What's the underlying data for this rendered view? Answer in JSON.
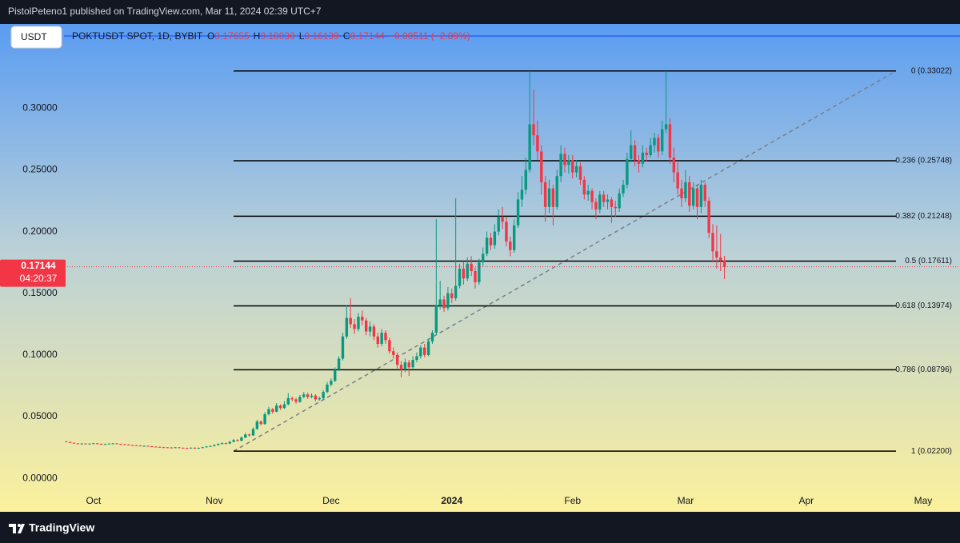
{
  "header": "PistolPeteno1 published on TradingView.com, Mar 11, 2024 02:39 UTC+7",
  "footer": "TradingView",
  "chart_data": {
    "type": "candlestick",
    "currency_button": "USDT",
    "symbol": "POKTUSDT SPOT, 1D, BYBIT",
    "legend_ohlc": [
      {
        "key": "O",
        "value": "0.17655"
      },
      {
        "key": "H",
        "value": "0.18030"
      },
      {
        "key": "L",
        "value": "0.16139"
      },
      {
        "key": "C",
        "value": "0.17144"
      }
    ],
    "change": "−0.00511 (−2.89%)",
    "last_price": 0.17144,
    "countdown": "04:20:37",
    "up_color": "#089981",
    "down_color": "#f23645",
    "xlim": [
      -24,
      220
    ],
    "xticks": [
      {
        "value": 0,
        "label": "Oct"
      },
      {
        "value": 31,
        "label": "Nov"
      },
      {
        "value": 61,
        "label": "Dec"
      },
      {
        "value": 92,
        "label": "2024"
      },
      {
        "value": 123,
        "label": "Feb"
      },
      {
        "value": 152,
        "label": "Mar"
      },
      {
        "value": 183,
        "label": "Apr"
      },
      {
        "value": 213,
        "label": "May"
      }
    ],
    "ylim": [
      -0.009,
      0.367
    ],
    "yticks": [
      {
        "value": 0,
        "label": "0.00000"
      },
      {
        "value": 0.05,
        "label": "0.05000"
      },
      {
        "value": 0.1,
        "label": "0.10000"
      },
      {
        "value": 0.15,
        "label": "0.15000"
      },
      {
        "value": 0.2,
        "label": "0.20000"
      },
      {
        "value": 0.25,
        "label": "0.25000"
      },
      {
        "value": 0.3,
        "label": "0.30000"
      }
    ],
    "fib_levels": [
      {
        "label": "0 (0.33022)",
        "value": 0.33022
      },
      {
        "label": "0.236 (0.25748)",
        "value": 0.25748
      },
      {
        "label": "0.382 (0.21248)",
        "value": 0.21248
      },
      {
        "label": "0.5 (0.17611)",
        "value": 0.17611
      },
      {
        "label": "0.618 (0.13974)",
        "value": 0.13974
      },
      {
        "label": "0.786 (0.08796)",
        "value": 0.08796
      },
      {
        "label": "1 (0.02200)",
        "value": 0.022
      }
    ],
    "x": [
      -7,
      -6,
      -5,
      -4,
      -3,
      -2,
      -1,
      0,
      1,
      2,
      3,
      4,
      5,
      6,
      7,
      8,
      9,
      10,
      11,
      12,
      13,
      14,
      15,
      16,
      17,
      18,
      19,
      20,
      21,
      22,
      23,
      24,
      25,
      26,
      27,
      28,
      29,
      30,
      31,
      32,
      33,
      34,
      35,
      36,
      37,
      38,
      39,
      40,
      41,
      42,
      43,
      44,
      45,
      46,
      47,
      48,
      49,
      50,
      51,
      52,
      53,
      54,
      55,
      56,
      57,
      58,
      59,
      60,
      61,
      62,
      63,
      64,
      65,
      66,
      67,
      68,
      69,
      70,
      71,
      72,
      73,
      74,
      75,
      76,
      77,
      78,
      79,
      80,
      81,
      82,
      83,
      84,
      85,
      86,
      87,
      88,
      89,
      90,
      91,
      92,
      93,
      94,
      95,
      96,
      97,
      98,
      99,
      100,
      101,
      102,
      103,
      104,
      105,
      106,
      107,
      108,
      109,
      110,
      111,
      112,
      113,
      114,
      115,
      116,
      117,
      118,
      119,
      120,
      121,
      122,
      123,
      124,
      125,
      126,
      127,
      128,
      129,
      130,
      131,
      132,
      133,
      134,
      135,
      136,
      137,
      138,
      139,
      140,
      141,
      142,
      143,
      144,
      145,
      146,
      147,
      148,
      149,
      150,
      151,
      152,
      153,
      154,
      155,
      156,
      157,
      158,
      159,
      160,
      161,
      162
    ],
    "ohlc": [
      [
        0.03,
        0.0302,
        0.0293,
        0.0295
      ],
      [
        0.0295,
        0.0297,
        0.0286,
        0.0288
      ],
      [
        0.0288,
        0.029,
        0.0281,
        0.0283
      ],
      [
        0.0283,
        0.0285,
        0.0278,
        0.028
      ],
      [
        0.028,
        0.0285,
        0.0278,
        0.0282
      ],
      [
        0.0282,
        0.0284,
        0.0277,
        0.0279
      ],
      [
        0.0279,
        0.0284,
        0.0277,
        0.0281
      ],
      [
        0.0281,
        0.0287,
        0.0279,
        0.0284
      ],
      [
        0.0284,
        0.0286,
        0.0278,
        0.028
      ],
      [
        0.028,
        0.0282,
        0.0274,
        0.0276
      ],
      [
        0.0276,
        0.0281,
        0.0274,
        0.0278
      ],
      [
        0.0278,
        0.0284,
        0.0276,
        0.0281
      ],
      [
        0.0281,
        0.0286,
        0.0279,
        0.0283
      ],
      [
        0.0283,
        0.0285,
        0.0277,
        0.0279
      ],
      [
        0.0279,
        0.0281,
        0.0275,
        0.0277
      ],
      [
        0.0277,
        0.0279,
        0.0272,
        0.0274
      ],
      [
        0.0274,
        0.0276,
        0.0268,
        0.027
      ],
      [
        0.027,
        0.0272,
        0.0266,
        0.0268
      ],
      [
        0.0268,
        0.027,
        0.0264,
        0.0266
      ],
      [
        0.0266,
        0.0268,
        0.026,
        0.0262
      ],
      [
        0.0262,
        0.0266,
        0.026,
        0.0263
      ],
      [
        0.0263,
        0.0265,
        0.0258,
        0.026
      ],
      [
        0.026,
        0.0262,
        0.0255,
        0.0257
      ],
      [
        0.0257,
        0.0259,
        0.0253,
        0.0255
      ],
      [
        0.0255,
        0.0257,
        0.025,
        0.0252
      ],
      [
        0.0252,
        0.0254,
        0.0249,
        0.0251
      ],
      [
        0.0251,
        0.0253,
        0.0248,
        0.025
      ],
      [
        0.025,
        0.0252,
        0.0247,
        0.0249
      ],
      [
        0.0249,
        0.0254,
        0.0247,
        0.0251
      ],
      [
        0.0251,
        0.0253,
        0.0246,
        0.0248
      ],
      [
        0.0248,
        0.025,
        0.0244,
        0.0246
      ],
      [
        0.0246,
        0.0248,
        0.0243,
        0.0245
      ],
      [
        0.0245,
        0.0251,
        0.0243,
        0.0248
      ],
      [
        0.0248,
        0.025,
        0.024,
        0.0244
      ],
      [
        0.0244,
        0.025,
        0.0242,
        0.0247
      ],
      [
        0.0247,
        0.0255,
        0.0245,
        0.0252
      ],
      [
        0.0252,
        0.0262,
        0.025,
        0.0258
      ],
      [
        0.0258,
        0.0266,
        0.0255,
        0.0262
      ],
      [
        0.0262,
        0.0275,
        0.0258,
        0.027
      ],
      [
        0.027,
        0.0284,
        0.0266,
        0.0278
      ],
      [
        0.0278,
        0.0292,
        0.0274,
        0.0285
      ],
      [
        0.0285,
        0.029,
        0.0276,
        0.0282
      ],
      [
        0.0282,
        0.0303,
        0.0279,
        0.0296
      ],
      [
        0.0296,
        0.032,
        0.0292,
        0.031
      ],
      [
        0.031,
        0.0318,
        0.0298,
        0.0305
      ],
      [
        0.0305,
        0.034,
        0.03,
        0.033
      ],
      [
        0.033,
        0.0368,
        0.0325,
        0.0355
      ],
      [
        0.0355,
        0.0362,
        0.0338,
        0.0348
      ],
      [
        0.0348,
        0.0412,
        0.0343,
        0.04
      ],
      [
        0.04,
        0.0475,
        0.0395,
        0.046
      ],
      [
        0.046,
        0.047,
        0.0428,
        0.044
      ],
      [
        0.044,
        0.0535,
        0.0435,
        0.052
      ],
      [
        0.052,
        0.058,
        0.051,
        0.056
      ],
      [
        0.056,
        0.057,
        0.0525,
        0.054
      ],
      [
        0.054,
        0.061,
        0.0535,
        0.059
      ],
      [
        0.059,
        0.06,
        0.0555,
        0.057
      ],
      [
        0.057,
        0.0625,
        0.0562,
        0.06
      ],
      [
        0.06,
        0.069,
        0.0592,
        0.065
      ],
      [
        0.065,
        0.0663,
        0.0625,
        0.064
      ],
      [
        0.064,
        0.0652,
        0.0605,
        0.062
      ],
      [
        0.062,
        0.0675,
        0.0612,
        0.066
      ],
      [
        0.066,
        0.07,
        0.065,
        0.068
      ],
      [
        0.068,
        0.0695,
        0.0645,
        0.066
      ],
      [
        0.066,
        0.0688,
        0.0648,
        0.067
      ],
      [
        0.067,
        0.0682,
        0.0625,
        0.064
      ],
      [
        0.064,
        0.0662,
        0.0628,
        0.065
      ],
      [
        0.065,
        0.0715,
        0.0642,
        0.07
      ],
      [
        0.07,
        0.078,
        0.069,
        0.076
      ],
      [
        0.076,
        0.081,
        0.0745,
        0.079
      ],
      [
        0.079,
        0.09,
        0.078,
        0.088
      ],
      [
        0.088,
        0.099,
        0.087,
        0.097
      ],
      [
        0.097,
        0.118,
        0.0955,
        0.115
      ],
      [
        0.115,
        0.14,
        0.113,
        0.13
      ],
      [
        0.13,
        0.146,
        0.122,
        0.125
      ],
      [
        0.125,
        0.129,
        0.117,
        0.121
      ],
      [
        0.121,
        0.134,
        0.119,
        0.131
      ],
      [
        0.131,
        0.136,
        0.124,
        0.128
      ],
      [
        0.128,
        0.13,
        0.116,
        0.119
      ],
      [
        0.119,
        0.127,
        0.115,
        0.123
      ],
      [
        0.123,
        0.125,
        0.112,
        0.115
      ],
      [
        0.115,
        0.118,
        0.106,
        0.109
      ],
      [
        0.109,
        0.121,
        0.107,
        0.118
      ],
      [
        0.118,
        0.12,
        0.109,
        0.112
      ],
      [
        0.112,
        0.114,
        0.101,
        0.103
      ],
      [
        0.103,
        0.106,
        0.097,
        0.1
      ],
      [
        0.1,
        0.102,
        0.089,
        0.092
      ],
      [
        0.092,
        0.095,
        0.082,
        0.088
      ],
      [
        0.088,
        0.097,
        0.086,
        0.094
      ],
      [
        0.094,
        0.096,
        0.083,
        0.09
      ],
      [
        0.09,
        0.099,
        0.088,
        0.096
      ],
      [
        0.096,
        0.102,
        0.094,
        0.099
      ],
      [
        0.099,
        0.108,
        0.097,
        0.106
      ],
      [
        0.106,
        0.109,
        0.098,
        0.1
      ],
      [
        0.1,
        0.113,
        0.099,
        0.111
      ],
      [
        0.111,
        0.12,
        0.109,
        0.118
      ],
      [
        0.118,
        0.21,
        0.116,
        0.14
      ],
      [
        0.14,
        0.16,
        0.137,
        0.145
      ],
      [
        0.145,
        0.148,
        0.135,
        0.138
      ],
      [
        0.138,
        0.155,
        0.136,
        0.15
      ],
      [
        0.15,
        0.154,
        0.142,
        0.146
      ],
      [
        0.146,
        0.227,
        0.144,
        0.156
      ],
      [
        0.156,
        0.174,
        0.154,
        0.17
      ],
      [
        0.17,
        0.176,
        0.157,
        0.162
      ],
      [
        0.162,
        0.179,
        0.16,
        0.174
      ],
      [
        0.174,
        0.18,
        0.164,
        0.168
      ],
      [
        0.168,
        0.171,
        0.154,
        0.159
      ],
      [
        0.159,
        0.178,
        0.157,
        0.175
      ],
      [
        0.175,
        0.187,
        0.172,
        0.182
      ],
      [
        0.182,
        0.2,
        0.18,
        0.195
      ],
      [
        0.195,
        0.199,
        0.185,
        0.189
      ],
      [
        0.189,
        0.206,
        0.186,
        0.2
      ],
      [
        0.2,
        0.218,
        0.197,
        0.212
      ],
      [
        0.212,
        0.22,
        0.202,
        0.208
      ],
      [
        0.208,
        0.212,
        0.188,
        0.192
      ],
      [
        0.192,
        0.196,
        0.18,
        0.185
      ],
      [
        0.185,
        0.21,
        0.183,
        0.205
      ],
      [
        0.205,
        0.232,
        0.203,
        0.226
      ],
      [
        0.226,
        0.245,
        0.22,
        0.234
      ],
      [
        0.234,
        0.26,
        0.23,
        0.25
      ],
      [
        0.25,
        0.33,
        0.248,
        0.287
      ],
      [
        0.287,
        0.315,
        0.27,
        0.278
      ],
      [
        0.278,
        0.29,
        0.258,
        0.265
      ],
      [
        0.265,
        0.27,
        0.23,
        0.24
      ],
      [
        0.24,
        0.245,
        0.208,
        0.22
      ],
      [
        0.22,
        0.242,
        0.215,
        0.235
      ],
      [
        0.235,
        0.238,
        0.205,
        0.22
      ],
      [
        0.22,
        0.25,
        0.218,
        0.245
      ],
      [
        0.245,
        0.27,
        0.24,
        0.263
      ],
      [
        0.263,
        0.268,
        0.248,
        0.254
      ],
      [
        0.254,
        0.262,
        0.247,
        0.258
      ],
      [
        0.258,
        0.262,
        0.243,
        0.248
      ],
      [
        0.248,
        0.258,
        0.244,
        0.253
      ],
      [
        0.253,
        0.256,
        0.238,
        0.242
      ],
      [
        0.242,
        0.245,
        0.226,
        0.23
      ],
      [
        0.23,
        0.238,
        0.225,
        0.233
      ],
      [
        0.233,
        0.235,
        0.218,
        0.224
      ],
      [
        0.224,
        0.227,
        0.21,
        0.218
      ],
      [
        0.218,
        0.233,
        0.215,
        0.23
      ],
      [
        0.23,
        0.233,
        0.22,
        0.224
      ],
      [
        0.224,
        0.23,
        0.218,
        0.226
      ],
      [
        0.226,
        0.228,
        0.207,
        0.22
      ],
      [
        0.22,
        0.225,
        0.212,
        0.219
      ],
      [
        0.219,
        0.235,
        0.216,
        0.231
      ],
      [
        0.231,
        0.242,
        0.228,
        0.238
      ],
      [
        0.238,
        0.264,
        0.235,
        0.259
      ],
      [
        0.259,
        0.282,
        0.256,
        0.27
      ],
      [
        0.27,
        0.274,
        0.253,
        0.258
      ],
      [
        0.258,
        0.262,
        0.248,
        0.255
      ],
      [
        0.255,
        0.27,
        0.252,
        0.264
      ],
      [
        0.264,
        0.268,
        0.257,
        0.262
      ],
      [
        0.262,
        0.276,
        0.26,
        0.27
      ],
      [
        0.27,
        0.28,
        0.264,
        0.276
      ],
      [
        0.276,
        0.279,
        0.26,
        0.265
      ],
      [
        0.265,
        0.29,
        0.262,
        0.283
      ],
      [
        0.283,
        0.33,
        0.28,
        0.287
      ],
      [
        0.287,
        0.292,
        0.255,
        0.26
      ],
      [
        0.26,
        0.268,
        0.24,
        0.248
      ],
      [
        0.248,
        0.256,
        0.23,
        0.235
      ],
      [
        0.235,
        0.242,
        0.22,
        0.227
      ],
      [
        0.227,
        0.25,
        0.224,
        0.24
      ],
      [
        0.24,
        0.245,
        0.216,
        0.221
      ],
      [
        0.221,
        0.24,
        0.218,
        0.235
      ],
      [
        0.235,
        0.238,
        0.21,
        0.22
      ],
      [
        0.22,
        0.242,
        0.215,
        0.238
      ],
      [
        0.238,
        0.24,
        0.22,
        0.225
      ],
      [
        0.225,
        0.228,
        0.195,
        0.199
      ],
      [
        0.199,
        0.206,
        0.175,
        0.184
      ],
      [
        0.184,
        0.205,
        0.17,
        0.179
      ],
      [
        0.179,
        0.198,
        0.168,
        0.17655
      ],
      [
        0.17655,
        0.1803,
        0.16139,
        0.17144
      ]
    ]
  }
}
